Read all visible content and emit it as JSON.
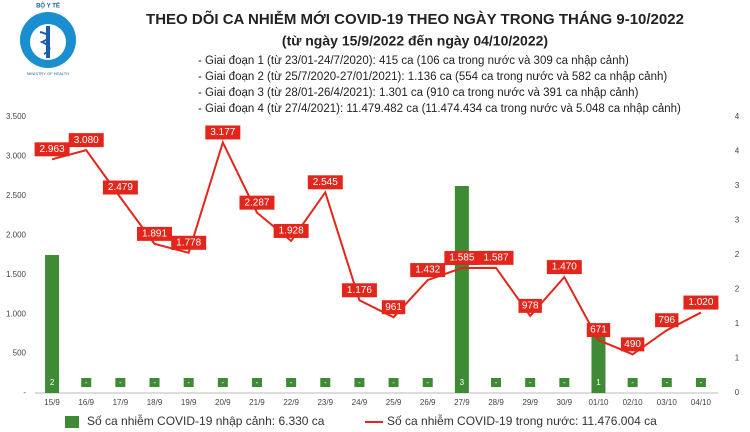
{
  "logo": {
    "top": "BỘ Y TẾ",
    "bottom": "MINISTRY OF HEALTH"
  },
  "chart_data": {
    "type": "bar-line",
    "title": "THEO DÕI CA NHIỄM MỚI COVID-19 THEO NGÀY TRONG THÁNG 9-10/2022",
    "subtitle": "(từ ngày 15/9/2022 đến ngày 04/10/2022)",
    "notes": [
      "- Giai đoạn 1 (từ 23/01-24/7/2020): 415 ca (106 ca trong nước và 309 ca nhập cảnh)",
      "- Giai đoạn 2 (từ 25/7/2020-27/01/2021): 1.136 ca (554 ca trong nước và 582 ca nhập cảnh)",
      "- Giai đoạn 3 (từ 28/01-26/4/2021): 1.301 ca (910 ca trong nước và 391 ca nhập cảnh)",
      "- Giai đoạn 4 (từ 27/4/2021): 11.479.482 ca (11.474.434 ca trong nước và 5.048 ca nhập cảnh)"
    ],
    "categories": [
      "15/9",
      "16/9",
      "17/9",
      "18/9",
      "19/9",
      "20/9",
      "21/9",
      "22/9",
      "23/9",
      "24/9",
      "25/9",
      "26/9",
      "27/9",
      "28/9",
      "29/9",
      "30/9",
      "01/10",
      "02/10",
      "03/10",
      "04/10"
    ],
    "series": [
      {
        "name": "Số ca nhiễm COVID-19 nhập cảnh: 6.330 ca",
        "type": "bar",
        "axis": "y2",
        "color": "#3f8a35",
        "values": [
          2,
          0,
          0,
          0,
          0,
          0,
          0,
          0,
          0,
          0,
          0,
          0,
          3,
          0,
          0,
          0,
          1,
          0,
          0,
          0
        ],
        "value_labels": [
          "2",
          "-",
          "-",
          "-",
          "-",
          "-",
          "-",
          "-",
          "-",
          "-",
          "-",
          "-",
          "3",
          "-",
          "-",
          "-",
          "1",
          "-",
          "-",
          "-"
        ]
      },
      {
        "name": "Số ca nhiễm COVID-19 trong nước: 11.476.004 ca",
        "type": "line",
        "color": "#e3261c",
        "values": [
          2963,
          3080,
          2479,
          1891,
          1778,
          3177,
          2287,
          1928,
          2545,
          1176,
          961,
          1432,
          1585,
          1587,
          978,
          1470,
          671,
          490,
          796,
          1020
        ],
        "value_labels": [
          "2.963",
          "3.080",
          "2.479",
          "1.891",
          "1.778",
          "3.177",
          "2.287",
          "1.928",
          "2.545",
          "1.176",
          "961",
          "1.432",
          "1.585",
          "1.587",
          "978",
          "1.470",
          "671",
          "490",
          "796",
          "1.020"
        ]
      }
    ],
    "ylim": [
      0,
      3500
    ],
    "yticks": [
      {
        "value": 0,
        "label": "-"
      },
      500,
      {
        "value": 1000,
        "label": "1.000"
      },
      {
        "value": 1500,
        "label": "1.500"
      },
      {
        "value": 2000,
        "label": "2.000"
      },
      {
        "value": 2500,
        "label": "2.500"
      },
      {
        "value": 3000,
        "label": "3.000"
      },
      {
        "value": 3500,
        "label": "3.500"
      }
    ],
    "y2lim": [
      0,
      4
    ],
    "y2ticks": [
      0,
      {
        "value": 0.5,
        "label": "1"
      },
      1,
      {
        "value": 1.5,
        "label": "2"
      },
      2,
      {
        "value": 2.5,
        "label": "3"
      },
      3,
      {
        "value": 3.5,
        "label": "4"
      },
      4
    ],
    "grid": false
  }
}
